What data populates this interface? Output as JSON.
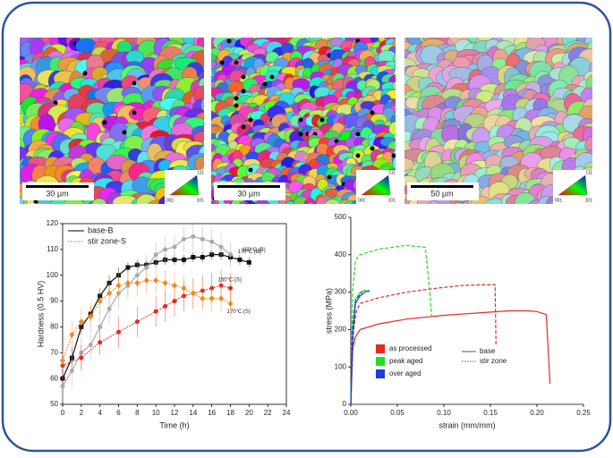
{
  "micrographs": [
    {
      "scale_bar": "30 µm",
      "ipf_labels": [
        "001",
        "101",
        "111"
      ]
    },
    {
      "scale_bar": "30 µm",
      "ipf_labels": [
        "001",
        "101",
        "111"
      ]
    },
    {
      "scale_bar": "50 µm",
      "ipf_labels": [
        "001",
        "101",
        "111"
      ]
    }
  ],
  "chart_data": [
    {
      "type": "line",
      "x_label": "Time (h)",
      "y_label": "Hardness (0.5 HV)",
      "xlim": [
        0,
        24
      ],
      "xticks": [
        0,
        2,
        4,
        6,
        8,
        10,
        12,
        14,
        16,
        18,
        20,
        22,
        24
      ],
      "ylim": [
        50,
        120
      ],
      "yticks": [
        50,
        60,
        70,
        80,
        90,
        100,
        110,
        120
      ],
      "legend": [
        {
          "label": "base-B",
          "style": "solid"
        },
        {
          "label": "stir zone-S",
          "style": "dotted"
        }
      ],
      "series": [
        {
          "name": "150°C (B)",
          "color": "#111111",
          "style": "solid",
          "marker": "square",
          "x": [
            0,
            1,
            2,
            3,
            4,
            5,
            6,
            7,
            8,
            9,
            10,
            11,
            12,
            13,
            14,
            15,
            16,
            17,
            18,
            19,
            20
          ],
          "values": [
            60,
            68,
            80,
            85,
            92,
            97,
            100,
            103,
            104,
            104,
            105,
            106,
            106,
            106,
            107,
            107,
            108,
            108,
            107,
            106,
            105
          ],
          "errors": [
            3,
            4,
            3,
            3,
            3,
            3,
            3,
            2,
            2,
            2,
            2,
            2,
            2,
            2,
            2,
            2,
            2,
            2,
            2,
            2,
            2
          ]
        },
        {
          "name": "170°C (B)",
          "color": "#aaaaaa",
          "style": "solid",
          "marker": "circle",
          "x": [
            0,
            1,
            2,
            3,
            4,
            5,
            6,
            7,
            8,
            9,
            10,
            11,
            12,
            13,
            14,
            15,
            16,
            17,
            18
          ],
          "values": [
            57,
            63,
            70,
            73,
            80,
            87,
            93,
            96,
            100,
            103,
            108,
            110,
            111,
            114,
            115,
            114,
            113,
            111,
            108
          ],
          "errors": [
            6,
            6,
            6,
            6,
            6,
            6,
            6,
            5,
            5,
            5,
            5,
            5,
            5,
            5,
            5,
            5,
            5,
            5,
            5
          ]
        },
        {
          "name": "150°C (S)",
          "color": "#e8281e",
          "style": "dotted",
          "marker": "circle",
          "x": [
            0,
            2,
            4,
            6,
            8,
            10,
            11,
            12,
            13,
            14,
            15,
            16,
            17,
            18
          ],
          "values": [
            65,
            68,
            74,
            78,
            82,
            86,
            88,
            90,
            92,
            93,
            94,
            95,
            96,
            95
          ],
          "errors": [
            5,
            5,
            5,
            6,
            6,
            6,
            6,
            6,
            6,
            6,
            6,
            6,
            6,
            6
          ]
        },
        {
          "name": "170°C (S)",
          "color": "#f08a1c",
          "style": "dotted",
          "marker": "diamond",
          "x": [
            0,
            1,
            2,
            3,
            4,
            5,
            6,
            7,
            8,
            9,
            10,
            11,
            12,
            13,
            14,
            15,
            16,
            17,
            18
          ],
          "values": [
            67,
            77,
            82,
            84,
            90,
            93,
            96,
            97,
            97,
            98,
            98,
            97,
            96,
            95,
            93,
            91,
            91,
            91,
            89
          ],
          "errors": [
            4,
            5,
            5,
            5,
            5,
            5,
            5,
            5,
            5,
            5,
            5,
            5,
            5,
            5,
            5,
            5,
            5,
            5,
            5
          ]
        }
      ]
    },
    {
      "type": "line",
      "x_label": "strain (mm/mm)",
      "y_label": "stress (MPa)",
      "xlim": [
        0,
        0.25
      ],
      "xticks": [
        {
          "value": 0,
          "label": "0.00"
        },
        {
          "value": 0.05,
          "label": "0.05"
        },
        {
          "value": 0.1,
          "label": "0.10"
        },
        {
          "value": 0.15,
          "label": "0.15"
        },
        {
          "value": 0.2,
          "label": "0.20"
        },
        {
          "value": 0.25,
          "label": "0.25"
        }
      ],
      "ylim": [
        0,
        500
      ],
      "yticks": [
        0,
        100,
        200,
        300,
        400,
        500
      ],
      "legend": {
        "colors": [
          {
            "label": "as processed",
            "color": "#e8281e"
          },
          {
            "label": "peak aged",
            "color": "#22dd22"
          },
          {
            "label": "over aged",
            "color": "#1a3ee0"
          }
        ],
        "styles": [
          {
            "label": "base",
            "style": "solid"
          },
          {
            "label": "stir zone",
            "style": "dotted"
          }
        ]
      },
      "series": [
        {
          "color": "#e8281e",
          "style": "solid",
          "x": [
            0,
            0.002,
            0.005,
            0.01,
            0.03,
            0.06,
            0.1,
            0.14,
            0.17,
            0.19,
            0.2,
            0.21,
            0.212,
            0.214
          ],
          "values": [
            0,
            150,
            180,
            200,
            215,
            228,
            238,
            245,
            250,
            250,
            248,
            240,
            150,
            55
          ]
        },
        {
          "color": "#e8281e",
          "style": "dashed",
          "x": [
            0,
            0.003,
            0.006,
            0.01,
            0.03,
            0.06,
            0.09,
            0.12,
            0.15,
            0.155,
            0.156
          ],
          "values": [
            0,
            200,
            250,
            270,
            285,
            300,
            310,
            318,
            320,
            320,
            160
          ]
        },
        {
          "color": "#22dd22",
          "style": "solid",
          "x": [
            0,
            0.002,
            0.005,
            0.01,
            0.015,
            0.02
          ],
          "values": [
            0,
            200,
            280,
            300,
            305,
            300
          ]
        },
        {
          "color": "#22dd22",
          "style": "dashed",
          "x": [
            0,
            0.002,
            0.005,
            0.01,
            0.03,
            0.06,
            0.08,
            0.085,
            0.087
          ],
          "values": [
            0,
            300,
            385,
            400,
            415,
            425,
            420,
            300,
            230
          ]
        },
        {
          "color": "#1a3ee0",
          "style": "solid",
          "x": [
            0,
            0.002,
            0.005,
            0.01,
            0.015,
            0.02
          ],
          "values": [
            0,
            180,
            270,
            290,
            300,
            305
          ]
        },
        {
          "color": "#1a3ee0",
          "style": "dashed",
          "x": [
            0,
            0.002,
            0.005,
            0.012
          ],
          "values": [
            0,
            200,
            280,
            300
          ]
        }
      ]
    }
  ]
}
